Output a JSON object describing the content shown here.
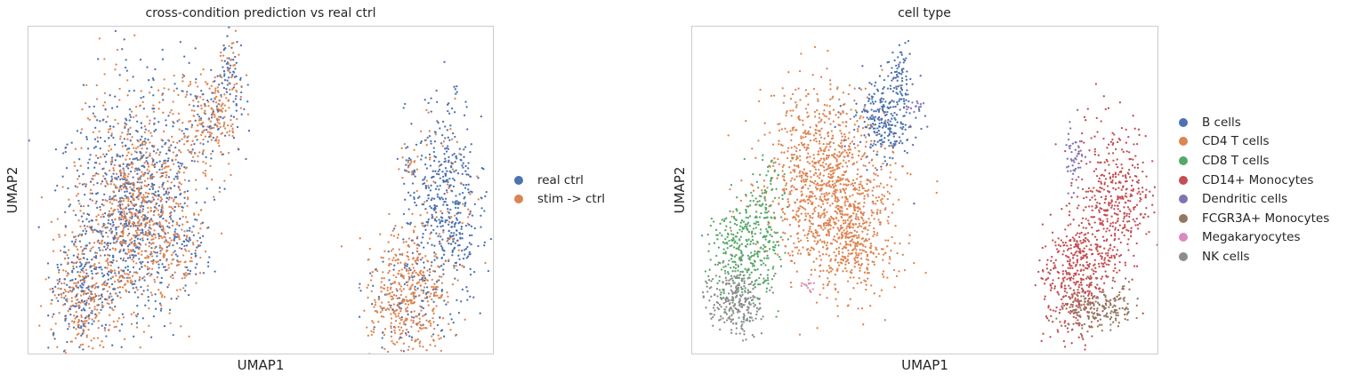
{
  "colors": {
    "blue": "#4c72b0",
    "orange": "#dd8452",
    "green": "#55a868",
    "red": "#c44e52",
    "purple": "#8172b3",
    "brown": "#937860",
    "pink": "#da8bc3",
    "gray": "#8c8c8c"
  },
  "chart_data": [
    {
      "type": "scatter",
      "title": "cross-condition prediction vs real ctrl",
      "xlabel": "UMAP1",
      "ylabel": "UMAP2",
      "grid": false,
      "legend_position": "right",
      "series": [
        {
          "name": "real ctrl",
          "color": "#4c72b0"
        },
        {
          "name": "stim -> ctrl",
          "color": "#dd8452"
        }
      ]
    },
    {
      "type": "scatter",
      "title": "cell type",
      "xlabel": "UMAP1",
      "ylabel": "UMAP2",
      "grid": false,
      "legend_position": "right",
      "series": [
        {
          "name": "B cells",
          "color": "#4c72b0"
        },
        {
          "name": "CD4 T cells",
          "color": "#dd8452"
        },
        {
          "name": "CD8 T cells",
          "color": "#55a868"
        },
        {
          "name": "CD14+ Monocytes",
          "color": "#c44e52"
        },
        {
          "name": "Dendritic cells",
          "color": "#8172b3"
        },
        {
          "name": "FCGR3A+ Monocytes",
          "color": "#937860"
        },
        {
          "name": "Megakaryocytes",
          "color": "#da8bc3"
        },
        {
          "name": "NK cells",
          "color": "#8c8c8c"
        }
      ]
    }
  ]
}
